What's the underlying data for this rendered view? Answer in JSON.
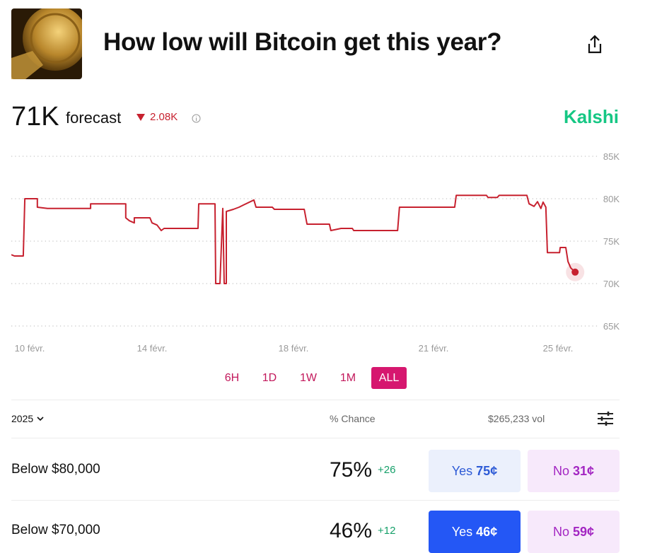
{
  "header": {
    "title": "How low will Bitcoin get this year?"
  },
  "forecast": {
    "value": "71K",
    "label": "forecast",
    "change": "2.08K",
    "brand": "Kalshi"
  },
  "chart_data": {
    "type": "line",
    "x": [
      9.4,
      9.5,
      9.79,
      9.84,
      10.25,
      10.25,
      10.58,
      11.99,
      11.99,
      13.14,
      13.14,
      13.26,
      13.42,
      13.42,
      13.93,
      14.0,
      14.14,
      14.26,
      14.34,
      15.3,
      15.32,
      15.78,
      15.8,
      15.92,
      16.0,
      16.04,
      16.1,
      16.1,
      16.3,
      16.46,
      16.58,
      16.88,
      16.94,
      17.4,
      17.46,
      18.23,
      18.29,
      18.77,
      18.8,
      19.02,
      19.26,
      19.29,
      20.23,
      20.27,
      21.68,
      21.73,
      22.7,
      22.75,
      23.05,
      23.11,
      24.0,
      24.07,
      24.23,
      24.34,
      24.45,
      24.52,
      24.61,
      24.66,
      25.05,
      25.07,
      25.25,
      25.32,
      25.41,
      25.55
    ],
    "series": [
      {
        "name": "Forecast",
        "color": "#c7212f",
        "values": [
          73.4,
          73.25,
          73.25,
          80,
          80,
          79,
          78.85,
          78.85,
          79.4,
          79.4,
          77.75,
          77.4,
          77.15,
          77.75,
          77.75,
          77.15,
          76.9,
          76.25,
          76.5,
          76.5,
          79.4,
          79.4,
          70,
          70,
          78.85,
          70,
          70,
          78.5,
          78.75,
          79,
          79.25,
          79.85,
          79,
          79,
          78.75,
          78.75,
          77,
          77,
          76.25,
          76.5,
          76.5,
          76.25,
          76.25,
          79,
          79,
          80.4,
          80.4,
          80.15,
          80.15,
          80.4,
          80.4,
          79.4,
          79.1,
          79.65,
          78.85,
          79.6,
          79,
          73.65,
          73.65,
          74.25,
          74.25,
          72.6,
          71.85,
          71.35
        ]
      }
    ],
    "ylim": [
      65,
      85
    ],
    "yticks": [
      {
        "value": 85,
        "label": "85K"
      },
      {
        "value": 80,
        "label": "80K"
      },
      {
        "value": 75,
        "label": "75K"
      },
      {
        "value": 70,
        "label": "70K"
      },
      {
        "value": 65,
        "label": "65K"
      }
    ],
    "xticks": [
      {
        "value": 10,
        "label": "10 févr."
      },
      {
        "value": 14,
        "label": "14 févr."
      },
      {
        "value": 18,
        "label": "18 févr."
      },
      {
        "value": 21,
        "label": "21 févr."
      },
      {
        "value": 25,
        "label": "25 févr."
      }
    ],
    "grid": true
  },
  "ranges": [
    "6H",
    "1D",
    "1W",
    "1M",
    "ALL"
  ],
  "market": {
    "year": "2025",
    "chance_header": "% Chance",
    "volume": "$265,233 vol",
    "rows": [
      {
        "name": "Below $80,000",
        "chance": "75%",
        "delta": "+26",
        "yes": "Yes",
        "yes_price": "75¢",
        "no": "No",
        "no_price": "31¢"
      },
      {
        "name": "Below $70,000",
        "chance": "46%",
        "delta": "+12",
        "yes": "Yes",
        "yes_price": "46¢",
        "no": "No",
        "no_price": "59¢"
      }
    ]
  }
}
